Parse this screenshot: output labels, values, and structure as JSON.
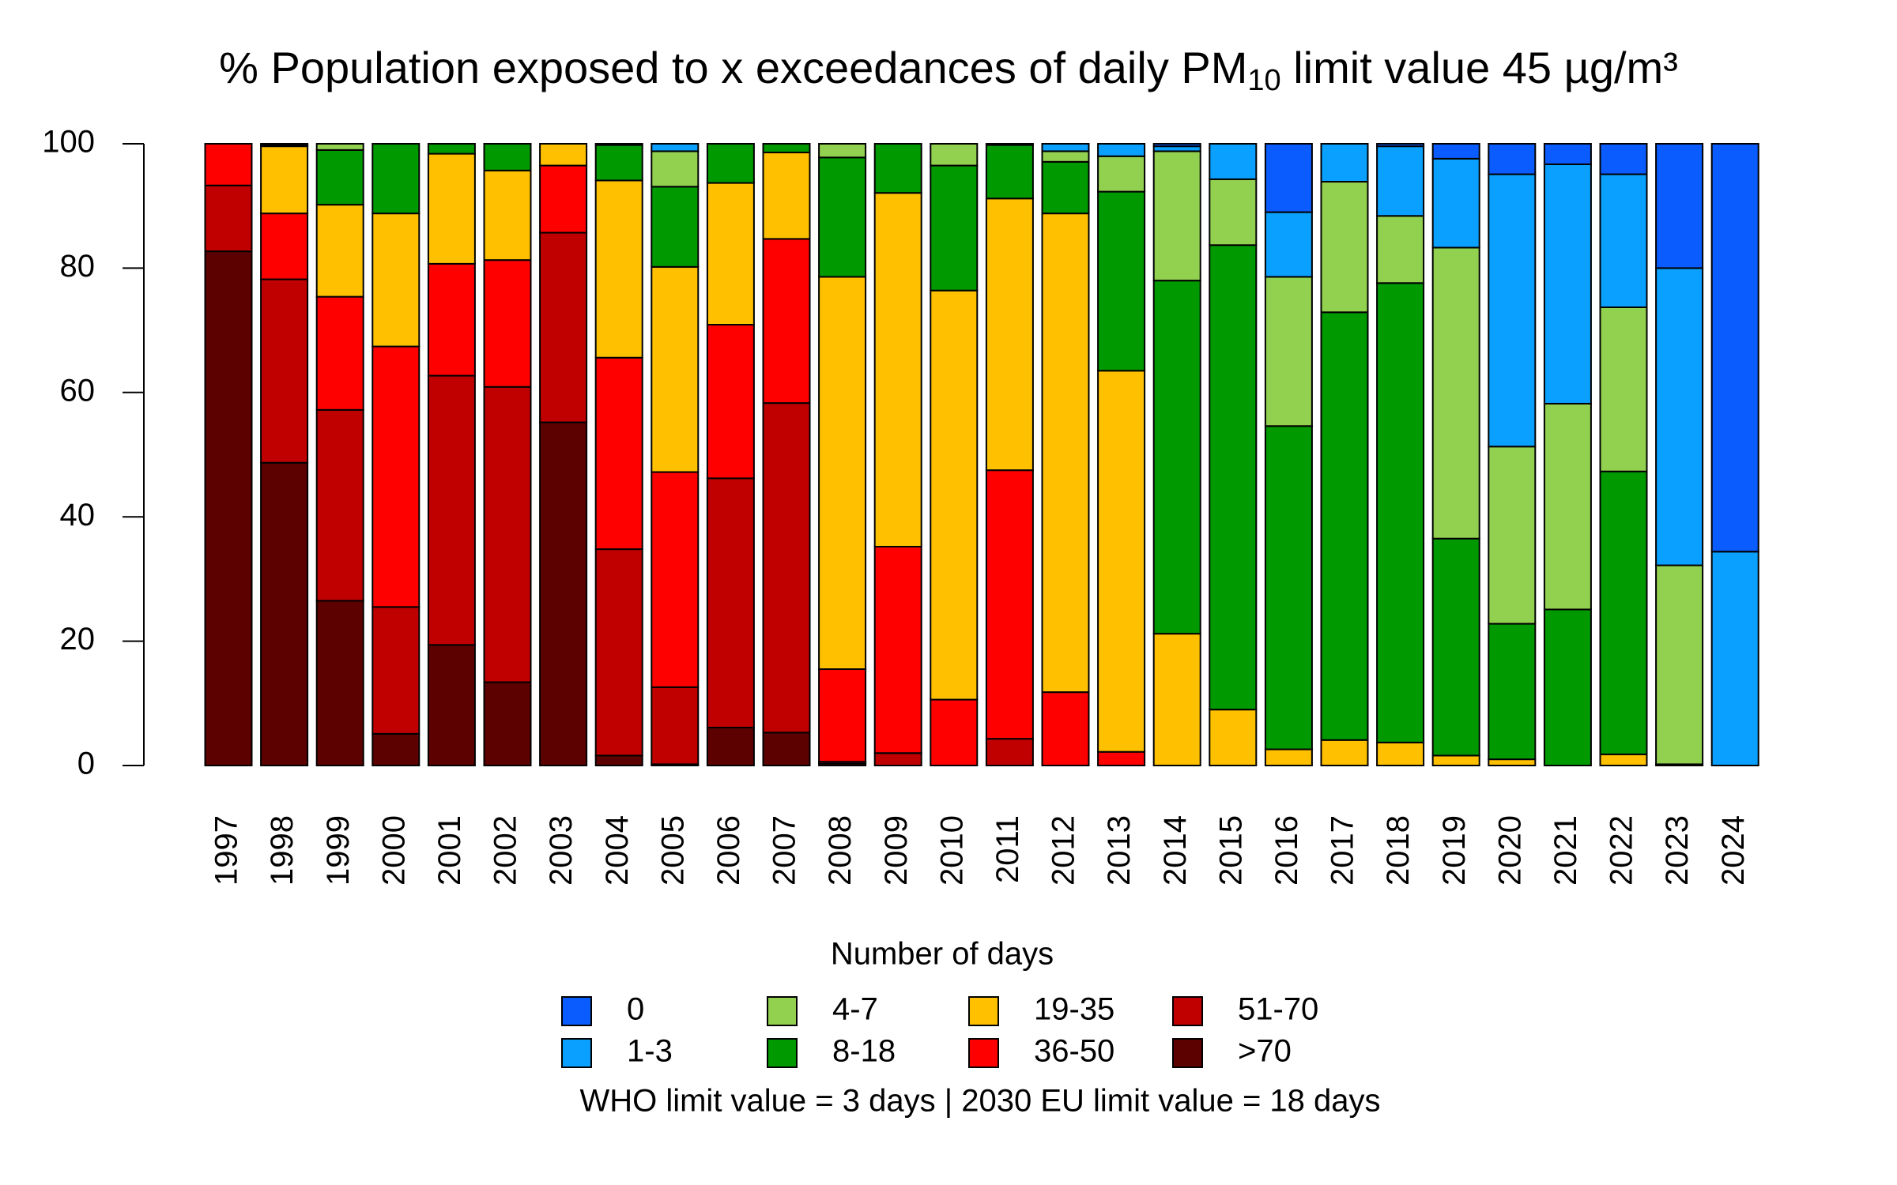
{
  "chart_data": {
    "type": "stacked_bar",
    "title": {
      "text": "% Population exposed to x exceedances of daily PM",
      "subscript": "10",
      "suffix": " limit value 45 µg/m³"
    },
    "categories": [
      "1997",
      "1998",
      "1999",
      "2000",
      "2001",
      "2002",
      "2003",
      "2004",
      "2005",
      "2006",
      "2007",
      "2008",
      "2009",
      "2010",
      "2011",
      "2012",
      "2013",
      "2014",
      "2015",
      "2016",
      "2017",
      "2018",
      "2019",
      "2020",
      "2021",
      "2022",
      "2023",
      "2024"
    ],
    "legend_title": "Number of days",
    "footnote": "WHO limit value = 3 days | 2030 EU limit value = 18 days",
    "ylim": [
      0,
      100
    ],
    "yticks": [
      0,
      20,
      40,
      60,
      80,
      100
    ],
    "series": [
      {
        "name": "0",
        "color": "#0a5cff",
        "values": [
          0,
          0,
          0,
          0,
          0,
          0,
          0,
          0,
          0,
          0,
          0,
          0,
          0,
          0,
          0,
          0,
          0,
          0.4,
          0,
          11.0,
          0,
          0.4,
          2.4,
          4.9,
          3.3,
          4.9,
          20.0,
          65.6
        ]
      },
      {
        "name": "1-3",
        "color": "#0aa0ff",
        "values": [
          0,
          0,
          0,
          0,
          0,
          0,
          0,
          0,
          1.2,
          0,
          0,
          0,
          0,
          0,
          0,
          1.2,
          2.0,
          0.8,
          5.7,
          10.4,
          6.1,
          11.2,
          14.3,
          43.8,
          38.5,
          21.4,
          47.8,
          34.4
        ]
      },
      {
        "name": "4-7",
        "color": "#92d050",
        "values": [
          0,
          0.2,
          1.0,
          0,
          0,
          0,
          0,
          0.2,
          5.7,
          0,
          0,
          2.2,
          0,
          3.5,
          0.2,
          1.7,
          5.7,
          20.8,
          10.6,
          24.0,
          21.0,
          10.8,
          46.8,
          28.5,
          33.1,
          26.4,
          32.0,
          0
        ]
      },
      {
        "name": "8-18",
        "color": "#009900",
        "values": [
          0,
          0.2,
          8.8,
          11.2,
          1.6,
          4.3,
          0,
          5.7,
          12.9,
          6.3,
          1.4,
          19.2,
          7.9,
          20.1,
          8.6,
          8.3,
          28.8,
          56.8,
          74.7,
          52.0,
          68.8,
          73.9,
          34.9,
          21.8,
          25.1,
          45.5,
          0.2,
          0
        ]
      },
      {
        "name": "19-35",
        "color": "#ffc000",
        "values": [
          0,
          10.8,
          14.8,
          21.4,
          17.7,
          14.4,
          3.5,
          28.5,
          33.0,
          22.8,
          13.9,
          63.1,
          56.9,
          65.8,
          43.7,
          77.0,
          61.3,
          21.2,
          9.0,
          2.6,
          4.1,
          3.7,
          1.6,
          1.0,
          0,
          1.8,
          0,
          0
        ]
      },
      {
        "name": "36-50",
        "color": "#ff0000",
        "values": [
          6.7,
          10.6,
          18.2,
          41.9,
          18.0,
          20.4,
          10.8,
          30.8,
          34.6,
          24.7,
          26.4,
          14.9,
          33.2,
          10.6,
          43.2,
          11.8,
          2.2,
          0,
          0,
          0,
          0,
          0,
          0,
          0,
          0,
          0,
          0,
          0
        ]
      },
      {
        "name": "51-70",
        "color": "#c00000",
        "values": [
          10.6,
          29.5,
          30.7,
          20.4,
          43.3,
          47.5,
          30.5,
          33.2,
          12.4,
          40.1,
          53.0,
          0.3,
          2.0,
          0,
          4.3,
          0,
          0,
          0,
          0,
          0,
          0,
          0,
          0,
          0,
          0,
          0,
          0,
          0
        ]
      },
      {
        "name": ">70",
        "color": "#5c0000",
        "values": [
          82.7,
          48.7,
          26.5,
          5.1,
          19.4,
          13.4,
          55.2,
          1.6,
          0.2,
          6.1,
          5.3,
          0.3,
          0,
          0,
          0,
          0,
          0,
          0,
          0,
          0,
          0,
          0,
          0,
          0,
          0,
          0,
          0,
          0
        ]
      }
    ]
  }
}
